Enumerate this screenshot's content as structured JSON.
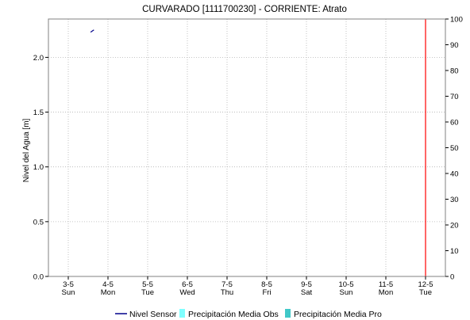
{
  "chart_data": {
    "type": "line",
    "title": "CURVARADO [1111700230] - CORRIENTE: Atrato",
    "ylabel": "Nivel del Agua [m]",
    "y2label": "",
    "xlabel": "",
    "ylim": [
      0.0,
      2.35
    ],
    "yticks": [
      0.0,
      0.5,
      1.0,
      1.5,
      2.0
    ],
    "ytick_labels": [
      "0.0",
      "0.5",
      "1.0",
      "1.5",
      "2.0"
    ],
    "y2lim": [
      0,
      100
    ],
    "y2ticks": [
      0,
      10,
      20,
      30,
      40,
      50,
      60,
      70,
      80,
      90,
      100
    ],
    "y2tick_labels": [
      "0",
      "10",
      "20",
      "30",
      "40",
      "50",
      "60",
      "70",
      "80",
      "90",
      "100"
    ],
    "xlim": [
      "2020-05-02T12:00",
      "2020-05-12T12:00"
    ],
    "xticks": [
      {
        "date": "2020-05-03",
        "label": "3-5",
        "day": "Sun"
      },
      {
        "date": "2020-05-04",
        "label": "4-5",
        "day": "Mon"
      },
      {
        "date": "2020-05-05",
        "label": "5-5",
        "day": "Tue"
      },
      {
        "date": "2020-05-06",
        "label": "6-5",
        "day": "Wed"
      },
      {
        "date": "2020-05-07",
        "label": "7-5",
        "day": "Thu"
      },
      {
        "date": "2020-05-08",
        "label": "8-5",
        "day": "Fri"
      },
      {
        "date": "2020-05-09",
        "label": "9-5",
        "day": "Sat"
      },
      {
        "date": "2020-05-10",
        "label": "10-5",
        "day": "Sun"
      },
      {
        "date": "2020-05-11",
        "label": "11-5",
        "day": "Mon"
      },
      {
        "date": "2020-05-12",
        "label": "12-5",
        "day": "Tue"
      }
    ],
    "grid": true,
    "legend_position": "bottom",
    "series": [
      {
        "name": "Nivel Sensor",
        "kind": "line",
        "axis": "left",
        "color": "#00008b",
        "points": [
          {
            "x": "2020-05-03T13:30",
            "y": 2.23
          },
          {
            "x": "2020-05-03T15:30",
            "y": 2.25
          }
        ]
      },
      {
        "name": "Precipitación Media Obs",
        "kind": "bar",
        "axis": "right",
        "color": "#7fffff",
        "points": []
      },
      {
        "name": "Precipitación Media Pro",
        "kind": "bar",
        "axis": "right",
        "color": "#40c8c8",
        "points": []
      }
    ],
    "marker_line": {
      "x": "2020-05-12",
      "color": "#ff0000"
    }
  }
}
